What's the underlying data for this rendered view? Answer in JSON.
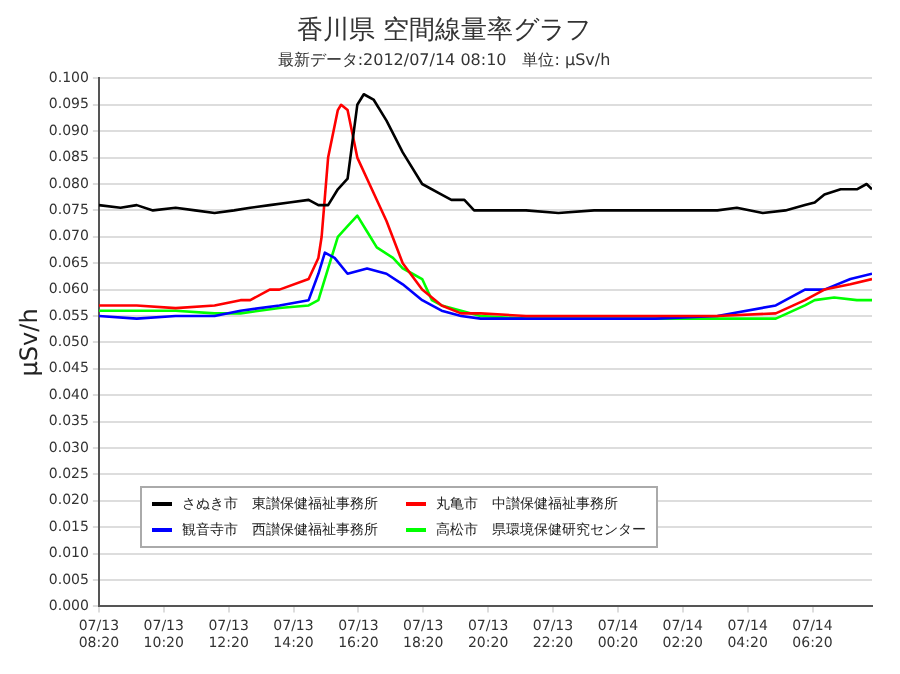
{
  "chart_data": {
    "type": "line",
    "title": "香川県 空間線量率グラフ",
    "subtitle": "最新データ:2012/07/14 08:10　単位: μSv/h",
    "ylabel": "μSv/h",
    "xlim": [
      "2012-07-13T08:20",
      "2012-07-14T08:10"
    ],
    "xticks": [
      {
        "value": "2012-07-13T08:20",
        "label": "07/13 08:20"
      },
      {
        "value": "2012-07-13T10:20",
        "label": "07/13 10:20"
      },
      {
        "value": "2012-07-13T12:20",
        "label": "07/13 12:20"
      },
      {
        "value": "2012-07-13T14:20",
        "label": "07/13 14:20"
      },
      {
        "value": "2012-07-13T16:20",
        "label": "07/13 16:20"
      },
      {
        "value": "2012-07-13T18:20",
        "label": "07/13 18:20"
      },
      {
        "value": "2012-07-13T20:20",
        "label": "07/13 20:20"
      },
      {
        "value": "2012-07-13T22:20",
        "label": "07/13 22:20"
      },
      {
        "value": "2012-07-14T00:20",
        "label": "07/14 00:20"
      },
      {
        "value": "2012-07-14T02:20",
        "label": "07/14 02:20"
      },
      {
        "value": "2012-07-14T04:20",
        "label": "07/14 04:20"
      },
      {
        "value": "2012-07-14T06:20",
        "label": "07/14 06:20"
      }
    ],
    "ylim": [
      0,
      0.1
    ],
    "yticks": [
      {
        "value": 0,
        "label": "0.000"
      },
      {
        "value": 0.005,
        "label": "0.005"
      },
      {
        "value": 0.01,
        "label": "0.010"
      },
      {
        "value": 0.015,
        "label": "0.015"
      },
      {
        "value": 0.02,
        "label": "0.020"
      },
      {
        "value": 0.025,
        "label": "0.025"
      },
      {
        "value": 0.03,
        "label": "0.030"
      },
      {
        "value": 0.035,
        "label": "0.035"
      },
      {
        "value": 0.04,
        "label": "0.040"
      },
      {
        "value": 0.045,
        "label": "0.045"
      },
      {
        "value": 0.05,
        "label": "0.050"
      },
      {
        "value": 0.055,
        "label": "0.055"
      },
      {
        "value": 0.06,
        "label": "0.060"
      },
      {
        "value": 0.065,
        "label": "0.065"
      },
      {
        "value": 0.07,
        "label": "0.070"
      },
      {
        "value": 0.075,
        "label": "0.075"
      },
      {
        "value": 0.08,
        "label": "0.080"
      },
      {
        "value": 0.085,
        "label": "0.085"
      },
      {
        "value": 0.09,
        "label": "0.090"
      },
      {
        "value": 0.095,
        "label": "0.095"
      },
      {
        "value": 0.1,
        "label": "0.100"
      }
    ],
    "grid": "y",
    "legend": "bottom left",
    "marker": "none",
    "line_style": "solid",
    "series": [
      {
        "name": "さぬき市　東讃保健福祉事務所",
        "color": "#000000",
        "x": [
          "2012-07-13T08:20",
          "2012-07-13T09:00",
          "2012-07-13T09:30",
          "2012-07-13T10:00",
          "2012-07-13T10:42",
          "2012-07-13T11:18",
          "2012-07-13T11:54",
          "2012-07-13T12:30",
          "2012-07-13T13:00",
          "2012-07-13T13:36",
          "2012-07-13T14:12",
          "2012-07-13T14:48",
          "2012-07-13T15:06",
          "2012-07-13T15:24",
          "2012-07-13T15:42",
          "2012-07-13T16:00",
          "2012-07-13T16:18",
          "2012-07-13T16:30",
          "2012-07-13T16:48",
          "2012-07-13T17:12",
          "2012-07-13T17:42",
          "2012-07-13T18:18",
          "2012-07-13T18:54",
          "2012-07-13T19:12",
          "2012-07-13T19:36",
          "2012-07-13T19:54",
          "2012-07-13T20:30",
          "2012-07-13T21:30",
          "2012-07-13T22:30",
          "2012-07-13T23:36",
          "2012-07-14T00:30",
          "2012-07-14T01:30",
          "2012-07-14T02:30",
          "2012-07-14T03:24",
          "2012-07-14T04:00",
          "2012-07-14T04:48",
          "2012-07-14T05:30",
          "2012-07-14T06:06",
          "2012-07-14T06:24",
          "2012-07-14T06:42",
          "2012-07-14T07:12",
          "2012-07-14T07:42",
          "2012-07-14T08:00",
          "2012-07-14T08:10"
        ],
        "values": [
          0.076,
          0.0755,
          0.076,
          0.075,
          0.0755,
          0.075,
          0.0745,
          0.075,
          0.0755,
          0.076,
          0.0765,
          0.077,
          0.076,
          0.076,
          0.079,
          0.081,
          0.095,
          0.097,
          0.096,
          0.092,
          0.086,
          0.08,
          0.078,
          0.077,
          0.077,
          0.075,
          0.075,
          0.075,
          0.0745,
          0.075,
          0.075,
          0.075,
          0.075,
          0.075,
          0.0755,
          0.0745,
          0.075,
          0.076,
          0.0765,
          0.078,
          0.079,
          0.079,
          0.08,
          0.079
        ]
      },
      {
        "name": "丸亀市　中讃保健福祉事務所",
        "color": "#ff0000",
        "x": [
          "2012-07-13T08:20",
          "2012-07-13T09:30",
          "2012-07-13T10:42",
          "2012-07-13T11:54",
          "2012-07-13T12:42",
          "2012-07-13T13:00",
          "2012-07-13T13:36",
          "2012-07-13T13:54",
          "2012-07-13T14:48",
          "2012-07-13T15:06",
          "2012-07-13T15:12",
          "2012-07-13T15:24",
          "2012-07-13T15:42",
          "2012-07-13T15:48",
          "2012-07-13T16:00",
          "2012-07-13T16:18",
          "2012-07-13T16:36",
          "2012-07-13T17:12",
          "2012-07-13T17:42",
          "2012-07-13T18:18",
          "2012-07-13T18:54",
          "2012-07-13T19:30",
          "2012-07-13T20:06",
          "2012-07-13T21:30",
          "2012-07-13T23:36",
          "2012-07-14T01:30",
          "2012-07-14T03:24",
          "2012-07-14T05:12",
          "2012-07-14T06:06",
          "2012-07-14T06:42",
          "2012-07-14T07:30",
          "2012-07-14T08:10"
        ],
        "values": [
          0.057,
          0.057,
          0.0565,
          0.057,
          0.058,
          0.058,
          0.06,
          0.06,
          0.062,
          0.066,
          0.07,
          0.085,
          0.094,
          0.095,
          0.094,
          0.085,
          0.081,
          0.073,
          0.065,
          0.06,
          0.057,
          0.0555,
          0.0555,
          0.055,
          0.055,
          0.055,
          0.055,
          0.0555,
          0.058,
          0.06,
          0.061,
          0.062
        ]
      },
      {
        "name": "観音寺市　西讃保健福祉事務所",
        "color": "#0000ff",
        "x": [
          "2012-07-13T08:20",
          "2012-07-13T09:30",
          "2012-07-13T10:42",
          "2012-07-13T11:54",
          "2012-07-13T12:42",
          "2012-07-13T13:54",
          "2012-07-13T14:48",
          "2012-07-13T15:06",
          "2012-07-13T15:18",
          "2012-07-13T15:36",
          "2012-07-13T16:00",
          "2012-07-13T16:36",
          "2012-07-13T17:12",
          "2012-07-13T17:42",
          "2012-07-13T18:18",
          "2012-07-13T18:54",
          "2012-07-13T19:30",
          "2012-07-13T20:06",
          "2012-07-13T21:30",
          "2012-07-13T23:36",
          "2012-07-14T01:30",
          "2012-07-14T03:24",
          "2012-07-14T05:12",
          "2012-07-14T06:06",
          "2012-07-14T06:42",
          "2012-07-14T07:30",
          "2012-07-14T08:10"
        ],
        "values": [
          0.055,
          0.0545,
          0.055,
          0.055,
          0.056,
          0.057,
          0.058,
          0.063,
          0.067,
          0.066,
          0.063,
          0.064,
          0.063,
          0.061,
          0.058,
          0.056,
          0.055,
          0.0545,
          0.0545,
          0.0545,
          0.0545,
          0.055,
          0.057,
          0.06,
          0.06,
          0.062,
          0.063
        ]
      },
      {
        "name": "高松市　県環境保健研究センター",
        "color": "#00ff00",
        "x": [
          "2012-07-13T08:20",
          "2012-07-13T09:30",
          "2012-07-13T10:42",
          "2012-07-13T11:54",
          "2012-07-13T12:42",
          "2012-07-13T13:54",
          "2012-07-13T14:48",
          "2012-07-13T15:06",
          "2012-07-13T15:24",
          "2012-07-13T15:42",
          "2012-07-13T16:00",
          "2012-07-13T16:18",
          "2012-07-13T16:36",
          "2012-07-13T16:54",
          "2012-07-13T17:24",
          "2012-07-13T17:42",
          "2012-07-13T18:00",
          "2012-07-13T18:18",
          "2012-07-13T18:36",
          "2012-07-13T18:54",
          "2012-07-13T20:06",
          "2012-07-13T21:30",
          "2012-07-13T23:36",
          "2012-07-14T01:30",
          "2012-07-14T03:24",
          "2012-07-14T05:12",
          "2012-07-14T06:06",
          "2012-07-14T06:24",
          "2012-07-14T07:00",
          "2012-07-14T07:42",
          "2012-07-14T08:10"
        ],
        "values": [
          0.056,
          0.056,
          0.056,
          0.0555,
          0.0555,
          0.0565,
          0.057,
          0.058,
          0.064,
          0.07,
          0.072,
          0.074,
          0.071,
          0.068,
          0.066,
          0.064,
          0.063,
          0.062,
          0.058,
          0.057,
          0.055,
          0.0545,
          0.0545,
          0.0545,
          0.0545,
          0.0545,
          0.057,
          0.058,
          0.0585,
          0.058,
          0.058
        ]
      }
    ]
  }
}
